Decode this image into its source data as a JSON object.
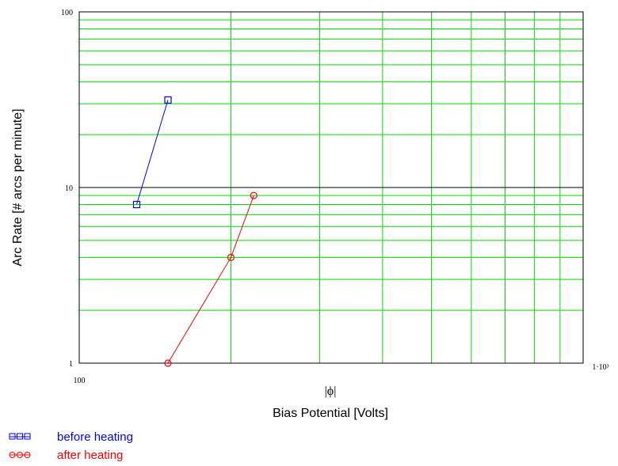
{
  "chart_data": {
    "type": "line",
    "x_scale": "log",
    "y_scale": "log",
    "xlim": [
      100,
      1000
    ],
    "ylim": [
      1,
      100
    ],
    "grid": true,
    "x_tick_labels": [
      "100",
      "1·10³"
    ],
    "y_tick_labels": [
      "1",
      "10",
      "100"
    ],
    "xlabel_top": "|ϕ|",
    "xlabel": "Bias Potential  [Volts]",
    "ylabel": "Arc Rate  [# arcs per minute]",
    "legend_position": "bottom-left",
    "colors": {
      "grid_major": "#000000",
      "grid_minor": "#00dd00",
      "before": "#0000ff",
      "after": "#ff0000"
    },
    "series": [
      {
        "name": "before heating",
        "marker": "square",
        "color": "#0000ff",
        "x": [
          130,
          150
        ],
        "y": [
          8,
          31.5
        ]
      },
      {
        "name": "after heating",
        "marker": "circle",
        "color": "#ff0000",
        "x": [
          150,
          200,
          222
        ],
        "y": [
          1,
          4,
          9
        ]
      }
    ]
  }
}
